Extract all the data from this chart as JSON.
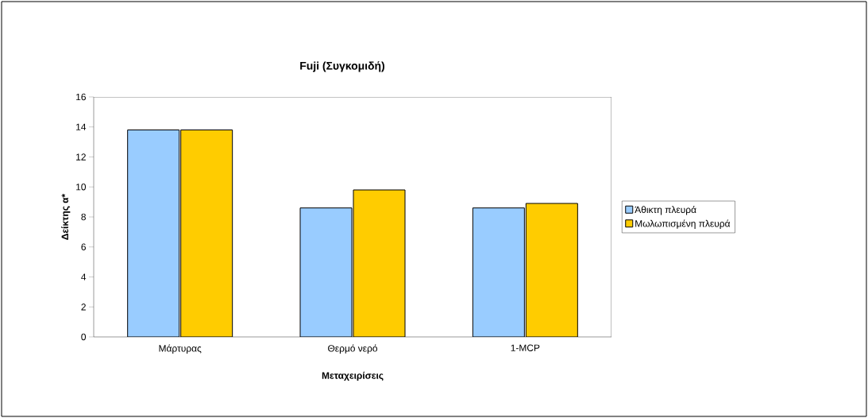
{
  "chart_data": {
    "type": "bar",
    "title": "Fuji (Συγκομιδή)",
    "xlabel": "Μεταχειρίσεις",
    "ylabel": "Δείκτης α*",
    "categories": [
      "Μάρτυρας",
      "Θερμό νερό",
      "1-MCP"
    ],
    "series": [
      {
        "name": "Άθικτη πλευρά",
        "color": "#99ccff",
        "values": [
          13.8,
          8.6,
          8.6
        ]
      },
      {
        "name": "Μωλωπισμένη πλευρά",
        "color": "#ffcc00",
        "values": [
          13.8,
          9.8,
          8.9
        ]
      }
    ],
    "ylim": [
      0,
      16
    ],
    "yticks": [
      0,
      2,
      4,
      6,
      8,
      10,
      12,
      14,
      16
    ],
    "grid": false,
    "legend": "right"
  }
}
